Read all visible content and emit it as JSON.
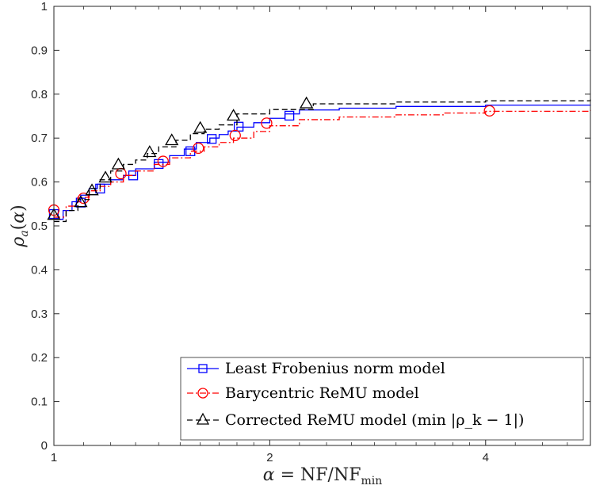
{
  "chart_data": {
    "type": "line",
    "xscale": "log2",
    "xlim": [
      1,
      5.6
    ],
    "ylim": [
      0,
      1
    ],
    "grid": false,
    "legend_position": "bottom-right",
    "x_ticks": [
      1,
      2,
      4
    ],
    "x_tick_labels": [
      "1",
      "2",
      "4"
    ],
    "y_ticks": [
      0,
      0.1,
      0.2,
      0.3,
      0.4,
      0.5,
      0.6,
      0.7,
      0.8,
      0.9,
      1
    ],
    "y_tick_labels": [
      "0",
      "0.1",
      "0.2",
      "0.3",
      "0.4",
      "0.5",
      "0.6",
      "0.7",
      "0.8",
      "0.9",
      "1"
    ],
    "xlabel": "α = NF/NF_min",
    "ylabel": "ρ_a(α)",
    "series": [
      {
        "name": "Least Frobenius norm model",
        "color": "#0000ff",
        "line_style": "solid",
        "marker": "square",
        "x": [
          1,
          1.03,
          1.06,
          1.09,
          1.12,
          1.15,
          1.2,
          1.25,
          1.3,
          1.38,
          1.45,
          1.52,
          1.58,
          1.65,
          1.7,
          1.75,
          1.8,
          1.9,
          2.0,
          2.1,
          2.2,
          2.5,
          3.0,
          4.0,
          5.6
        ],
        "y": [
          0.515,
          0.535,
          0.555,
          0.57,
          0.585,
          0.595,
          0.605,
          0.615,
          0.63,
          0.645,
          0.66,
          0.675,
          0.69,
          0.7,
          0.708,
          0.716,
          0.725,
          0.735,
          0.745,
          0.755,
          0.764,
          0.768,
          0.772,
          0.775,
          0.776
        ],
        "marker_x": [
          1,
          1.09,
          1.16,
          1.29,
          1.4,
          1.55,
          1.66,
          1.81,
          2.13
        ],
        "marker_y": [
          0.527,
          0.553,
          0.585,
          0.615,
          0.641,
          0.67,
          0.698,
          0.726,
          0.751
        ]
      },
      {
        "name": "Barycentric ReMU model",
        "color": "#ff0000",
        "line_style": "dash-dot",
        "marker": "circle",
        "x": [
          1,
          1.04,
          1.08,
          1.12,
          1.16,
          1.2,
          1.25,
          1.3,
          1.38,
          1.45,
          1.55,
          1.62,
          1.7,
          1.78,
          1.9,
          2.0,
          2.2,
          2.5,
          3.0,
          3.5,
          4.0,
          5.6
        ],
        "y": [
          0.52,
          0.545,
          0.565,
          0.58,
          0.59,
          0.6,
          0.615,
          0.625,
          0.64,
          0.655,
          0.67,
          0.68,
          0.69,
          0.7,
          0.715,
          0.728,
          0.742,
          0.748,
          0.753,
          0.757,
          0.761,
          0.764
        ],
        "marker_x": [
          1,
          1.1,
          1.24,
          1.42,
          1.59,
          1.79,
          1.98,
          4.05
        ],
        "marker_y": [
          0.536,
          0.563,
          0.619,
          0.647,
          0.677,
          0.706,
          0.734,
          0.762
        ]
      },
      {
        "name": "Corrected ReMU model (min |ρ_k − 1|)",
        "color": "#000000",
        "line_style": "dashed",
        "marker": "triangle",
        "x": [
          1,
          1.04,
          1.08,
          1.12,
          1.16,
          1.2,
          1.25,
          1.3,
          1.35,
          1.4,
          1.48,
          1.55,
          1.62,
          1.7,
          1.8,
          2.0,
          2.3,
          3.0,
          4.0,
          5.6
        ],
        "y": [
          0.51,
          0.535,
          0.56,
          0.585,
          0.605,
          0.625,
          0.64,
          0.65,
          0.665,
          0.68,
          0.695,
          0.71,
          0.72,
          0.73,
          0.755,
          0.765,
          0.778,
          0.782,
          0.785,
          0.788
        ],
        "marker_x": [
          1,
          1.09,
          1.13,
          1.18,
          1.23,
          1.36,
          1.46,
          1.6,
          1.78,
          2.25
        ],
        "marker_y": [
          0.524,
          0.553,
          0.58,
          0.609,
          0.639,
          0.667,
          0.694,
          0.722,
          0.75,
          0.778
        ]
      }
    ]
  }
}
